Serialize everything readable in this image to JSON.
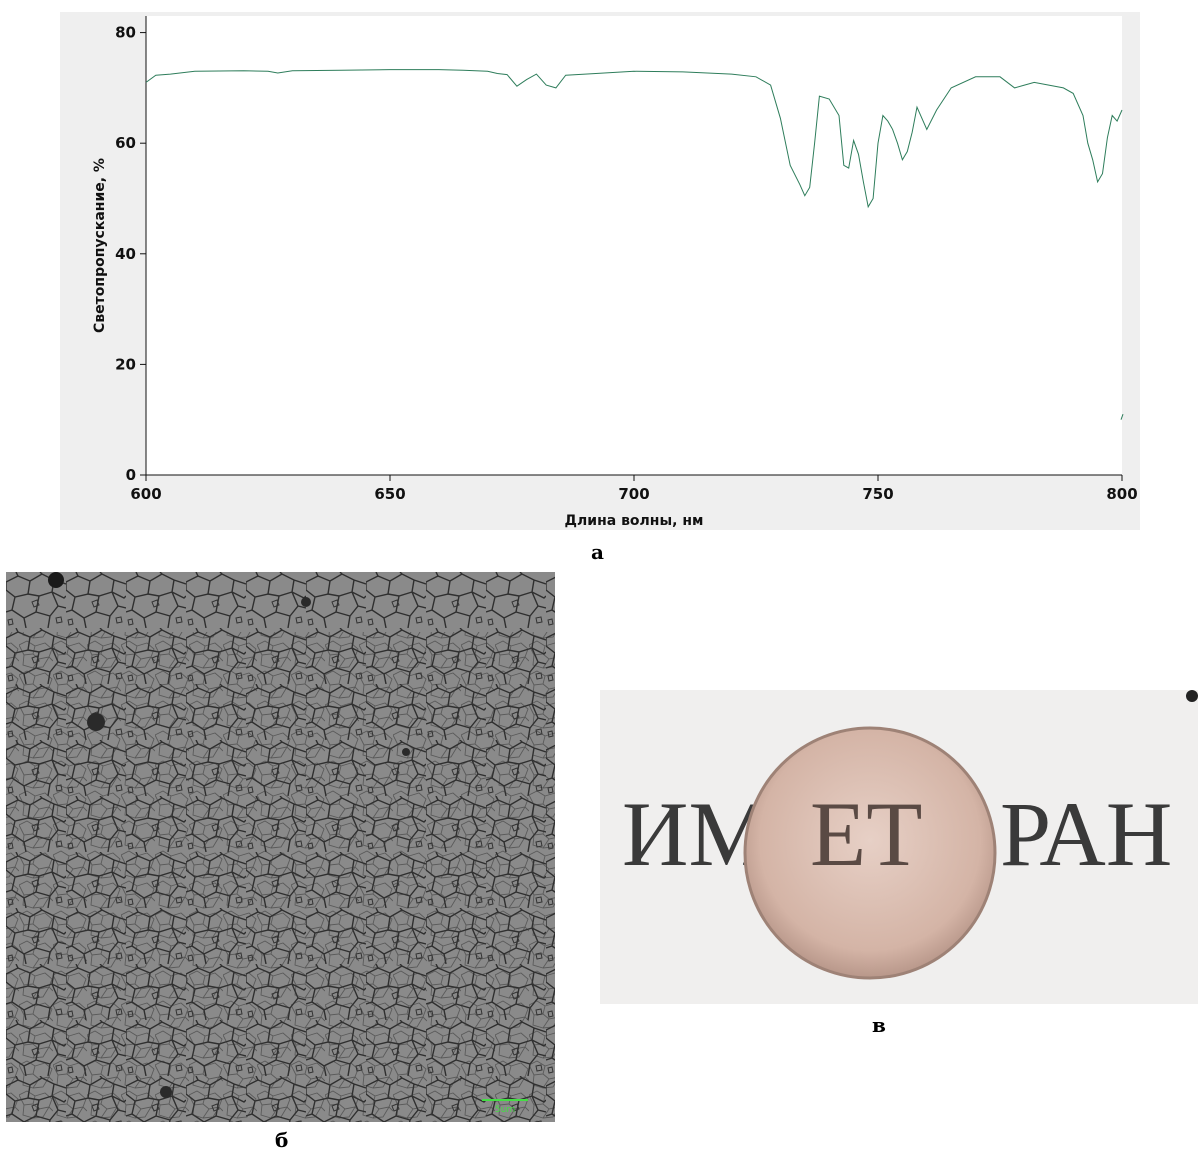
{
  "chart_data": {
    "type": "line",
    "ylabel": "Светопропускание, %",
    "xlabel": "Длина волны, нм",
    "xlim": [
      600,
      800
    ],
    "ylim": [
      0,
      83
    ],
    "xticks": [
      "600",
      "650",
      "700",
      "750",
      "800"
    ],
    "yticks": [
      "0",
      "20",
      "40",
      "60",
      "80"
    ],
    "grid": false,
    "line_color": "#2e7d5b",
    "series": [
      {
        "x": [
          600,
          602,
          605,
          610,
          620,
          625,
          627,
          630,
          640,
          650,
          660,
          665,
          670,
          672,
          674,
          676,
          678,
          680,
          682,
          684,
          686,
          690,
          700,
          710,
          720,
          725,
          728,
          730,
          732,
          734,
          735,
          736,
          737,
          738,
          740,
          742,
          743,
          744,
          745,
          746,
          747,
          748,
          749,
          750,
          751,
          752,
          753,
          754,
          755,
          756,
          757,
          758,
          760,
          762,
          765,
          770,
          775,
          778,
          780,
          782,
          785,
          788,
          790,
          792,
          793,
          794,
          795,
          796,
          797,
          798,
          799,
          800
        ],
        "y": [
          71.0,
          72.3,
          72.5,
          73.0,
          73.1,
          73.0,
          72.7,
          73.1,
          73.2,
          73.3,
          73.3,
          73.2,
          73.0,
          72.6,
          72.4,
          70.3,
          71.5,
          72.5,
          70.5,
          70.0,
          72.3,
          72.5,
          73.0,
          72.9,
          72.5,
          72.0,
          70.5,
          64.5,
          56.0,
          52.5,
          50.5,
          52.0,
          60.0,
          68.5,
          68.0,
          65.0,
          56.0,
          55.5,
          60.5,
          58.0,
          53.0,
          48.5,
          50.0,
          60.0,
          65.0,
          64.0,
          62.5,
          60.0,
          57.0,
          58.5,
          62.0,
          66.5,
          62.5,
          66.0,
          70.0,
          72.0,
          72.0,
          70.0,
          70.5,
          71.0,
          70.5,
          70.0,
          69.0,
          65.0,
          60.0,
          57.0,
          53.0,
          54.5,
          61.0,
          65.0,
          64.0,
          66.0
        ]
      }
    ]
  },
  "captions": {
    "a": "а",
    "b": "б",
    "c": "в"
  },
  "micrograph": {
    "scale_bar_label": "5um",
    "scale_bar_color": "#44dd44"
  },
  "photo": {
    "text_left": "ИМ",
    "text_center": "ЕТ",
    "text_right": "РАН"
  }
}
